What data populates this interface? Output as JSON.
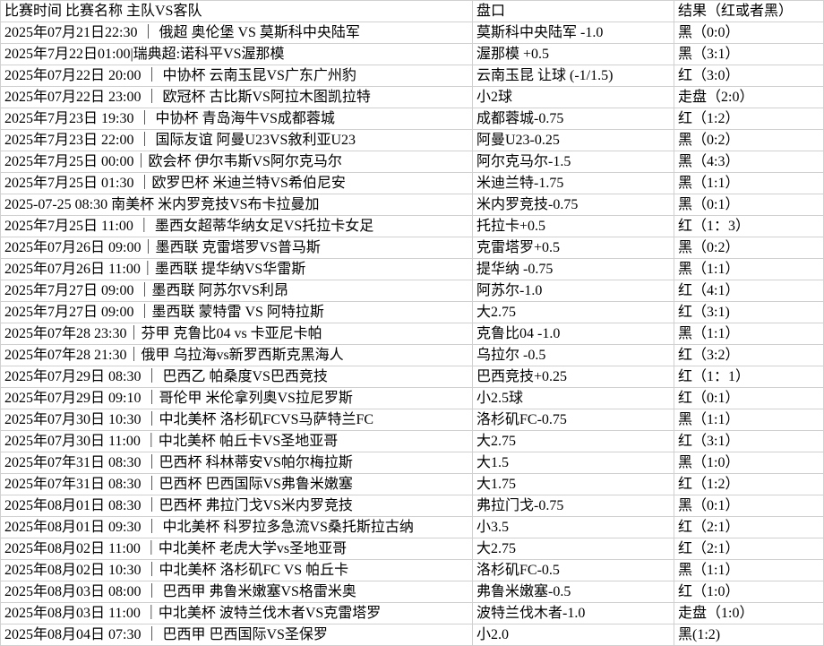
{
  "table": {
    "columns": [
      {
        "label": "比赛时间  比赛名称  主队VS客队"
      },
      {
        "label": "盘口"
      },
      {
        "label": "结果（红或者黑）"
      }
    ],
    "rows": [
      {
        "match": "2025年07月21日22:30 ｜ 俄超 奥伦堡 VS 莫斯科中央陆军",
        "handicap": "莫斯科中央陆军 -1.0",
        "result": "黑（0:0）"
      },
      {
        "match": "2025年7月22日01:00|瑞典超:诺科平VS渥那模",
        "handicap": "渥那模 +0.5",
        "result": "黑（3:1）"
      },
      {
        "match": "2025年07月22日 20:00 ｜ 中协杯 云南玉昆VS广东广州豹",
        "handicap": "云南玉昆 让球 (-1/1.5)",
        "result": "红（3:0）"
      },
      {
        "match": "2025年07月22日 23:00 ｜ 欧冠杯 古比斯VS阿拉木图凯拉特",
        "handicap": "小2球",
        "result": "走盘（2:0）"
      },
      {
        "match": "2025年7月23日 19:30 ｜ 中协杯 青岛海牛VS成都蓉城",
        "handicap": "成都蓉城-0.75",
        "result": "红（1:2）"
      },
      {
        "match": "2025年7月23日 22:00 ｜ 国际友谊 阿曼U23VS敘利亚U23",
        "handicap": "阿曼U23-0.25",
        "result": "黑（0:2）"
      },
      {
        "match": "2025年7月25日 00:00｜欧会杯 伊尔韦斯VS阿尔克马尔",
        "handicap": "阿尔克马尔-1.5",
        "result": "黑（4:3）"
      },
      {
        "match": "2025年7月25日 01:30 ｜欧罗巴杯 米迪兰特VS希伯尼安",
        "handicap": "米迪兰特-1.75",
        "result": "黑（1:1）"
      },
      {
        "match": "2025-07-25 08:30 南美杯 米内罗竞技VS布卡拉曼加",
        "handicap": "米内罗竞技-0.75",
        "result": "黑（0:1）"
      },
      {
        "match": "2025年7月25日 11:00 ｜  墨西女超蒂华纳女足VS托拉卡女足",
        "handicap": "托拉卡+0.5",
        "result": "红（1：3）"
      },
      {
        "match": "2025年07月26日 09:00｜墨西联 克雷塔罗VS普马斯",
        "handicap": "克雷塔罗+0.5",
        "result": "黑（0:2）"
      },
      {
        "match": "2025年07月26日 11:00｜墨西联 提华纳VS华雷斯",
        "handicap": "提华纳 -0.75",
        "result": "黑（1:1）"
      },
      {
        "match": "2025年7月27日 09:00 ｜墨西联 阿苏尔VS利昂",
        "handicap": "阿苏尔-1.0",
        "result": "红（4:1）"
      },
      {
        "match": "2025年7月27日 09:00 ｜墨西联 蒙特雷 VS 阿特拉斯",
        "handicap": "大2.75",
        "result": "红（3:1)"
      },
      {
        "match": "2025年07年28 23:30｜芬甲 克鲁比04 vs 卡亚尼卡帕",
        "handicap": "克鲁比04 -1.0",
        "result": "黑（1:1）"
      },
      {
        "match": "2025年07年28 21:30｜俄甲 乌拉海vs新罗西斯克黑海人",
        "handicap": "乌拉尔 -0.5",
        "result": "红（3:2）"
      },
      {
        "match": "2025年07月29日 08:30 ｜ 巴西乙 帕桑度VS巴西竞技",
        "handicap": "巴西竞技+0.25",
        "result": "红（1：1）"
      },
      {
        "match": "2025年07月29日 09:10 ｜哥伦甲 米伦拿列奥VS拉尼罗斯",
        "handicap": "小2.5球",
        "result": "红（0:1）"
      },
      {
        "match": "2025年07月30日 10:30 ｜中北美杯 洛杉矶FCVS马萨特兰FC",
        "handicap": "洛杉矶FC-0.75",
        "result": "黑（1:1）"
      },
      {
        "match": "2025年07月30日 11:00 ｜中北美杯 帕丘卡VS圣地亚哥",
        "handicap": "大2.75",
        "result": "红（3:1）"
      },
      {
        "match": "2025年07年31日 08:30 ｜巴西杯 科林蒂安VS帕尔梅拉斯",
        "handicap": "大1.5",
        "result": "黑（1:0）"
      },
      {
        "match": "2025年07年31日 08:30 ｜巴西杯 巴西国际VS弗鲁米嫩塞",
        "handicap": "大1.75",
        "result": "红（1:2）"
      },
      {
        "match": "2025年08月01日 08:30 ｜巴西杯 弗拉门戈VS米内罗竞技",
        "handicap": "弗拉门戈-0.75",
        "result": "黑（0:1）"
      },
      {
        "match": "2025年08月01日 09:30 ｜ 中北美杯 科罗拉多急流VS桑托斯拉古纳",
        "handicap": "小3.5",
        "result": "红（2:1）"
      },
      {
        "match": "2025年08月02日 11:00 ｜中北美杯 老虎大学vs圣地亚哥",
        "handicap": "大2.75",
        "result": "红（2:1）"
      },
      {
        "match": "2025年08月02日 10:30 ｜中北美杯 洛杉矶FC VS 帕丘卡",
        "handicap": "洛杉矶FC-0.5",
        "result": "黑（1:1）"
      },
      {
        "match": "2025年08月03日 08:00 ｜  巴西甲 弗鲁米嫩塞VS格雷米奥",
        "handicap": "弗鲁米嫩塞-0.5",
        "result": "红（1:0）"
      },
      {
        "match": "2025年08月03日 11:00 ｜中北美杯 波特兰伐木者VS克雷塔罗",
        "handicap": "波特兰伐木者-1.0",
        "result": "走盘（1:0）"
      },
      {
        "match": "2025年08月04日 07:30 ｜ 巴西甲 巴西国际VS圣保罗",
        "handicap": "小2.0",
        "result": "黑(1:2)"
      }
    ]
  },
  "colors": {
    "background": "#ffffff",
    "grid_line": "#d0d0d0",
    "text": "#000000"
  }
}
